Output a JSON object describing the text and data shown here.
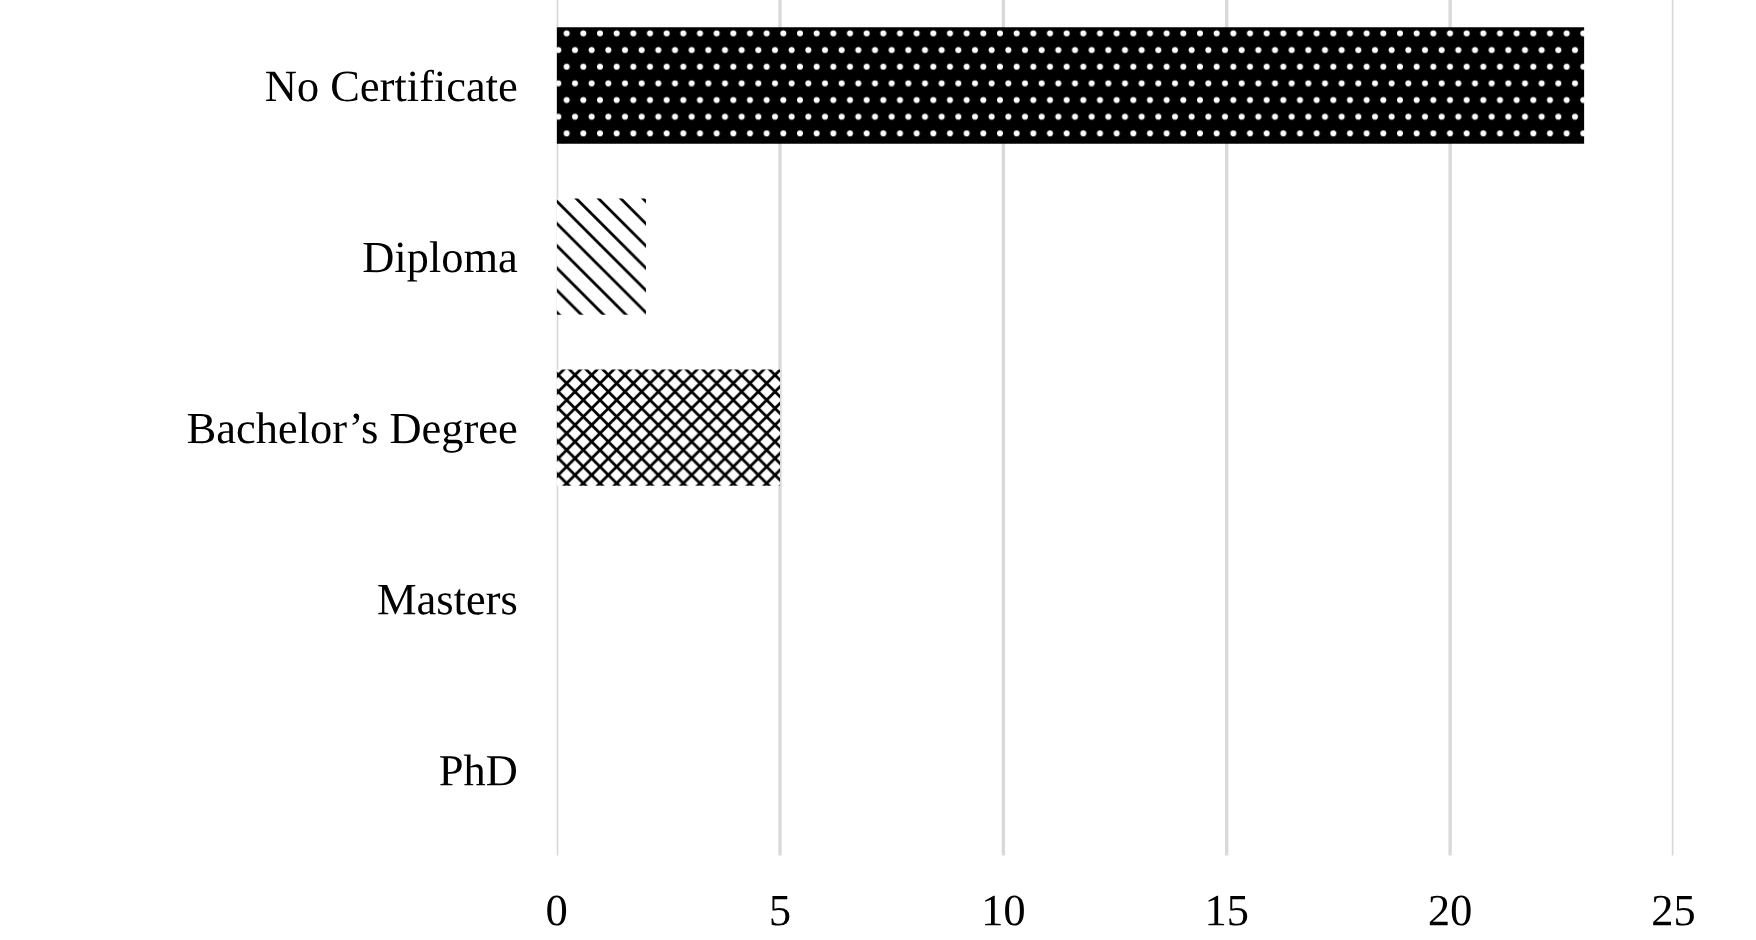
{
  "chart_data": {
    "type": "bar",
    "orientation": "horizontal",
    "categories": [
      "No Certificate",
      "Diploma",
      "Bachelor’s Degree",
      "Masters",
      "PhD"
    ],
    "values": [
      23,
      2,
      5,
      0,
      0
    ],
    "colors": [
      "#000000",
      "#000000",
      "#000000",
      "#000000",
      "#000000"
    ],
    "xlim": [
      0,
      25
    ],
    "xticks": [
      0,
      5,
      10,
      15,
      20,
      25
    ],
    "grid": "x"
  }
}
